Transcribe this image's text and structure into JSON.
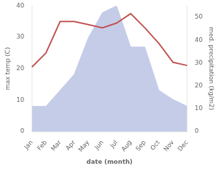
{
  "chart_data": {
    "type": "line",
    "categories": [
      "Jan",
      "Feb",
      "Mar",
      "Apr",
      "May",
      "Jun",
      "Jul",
      "Aug",
      "Sep",
      "Oct",
      "Nov",
      "Dec"
    ],
    "series": [
      {
        "type": "area",
        "axis": "y2",
        "color": "#c5cce8",
        "values": [
          11,
          11,
          18,
          25,
          41,
          52,
          55,
          37,
          37,
          18,
          14,
          11
        ]
      },
      {
        "type": "line",
        "color": "#c0504d",
        "values": [
          20.5,
          25.0,
          35.0,
          35.0,
          34.0,
          33.0,
          34.5,
          37.5,
          33.0,
          28.0,
          22.0,
          21.0
        ]
      }
    ],
    "xlabel": "date (month)",
    "ylabel": "max temp (C)",
    "y2label": "med. precipitation (kg/m2)",
    "ylim": [
      0,
      40
    ],
    "yticks": [
      0,
      10,
      20,
      30,
      40
    ],
    "y2lim": [
      0,
      55
    ],
    "y2ticks": [
      0,
      10,
      20,
      30,
      40,
      50
    ],
    "grid": false
  }
}
